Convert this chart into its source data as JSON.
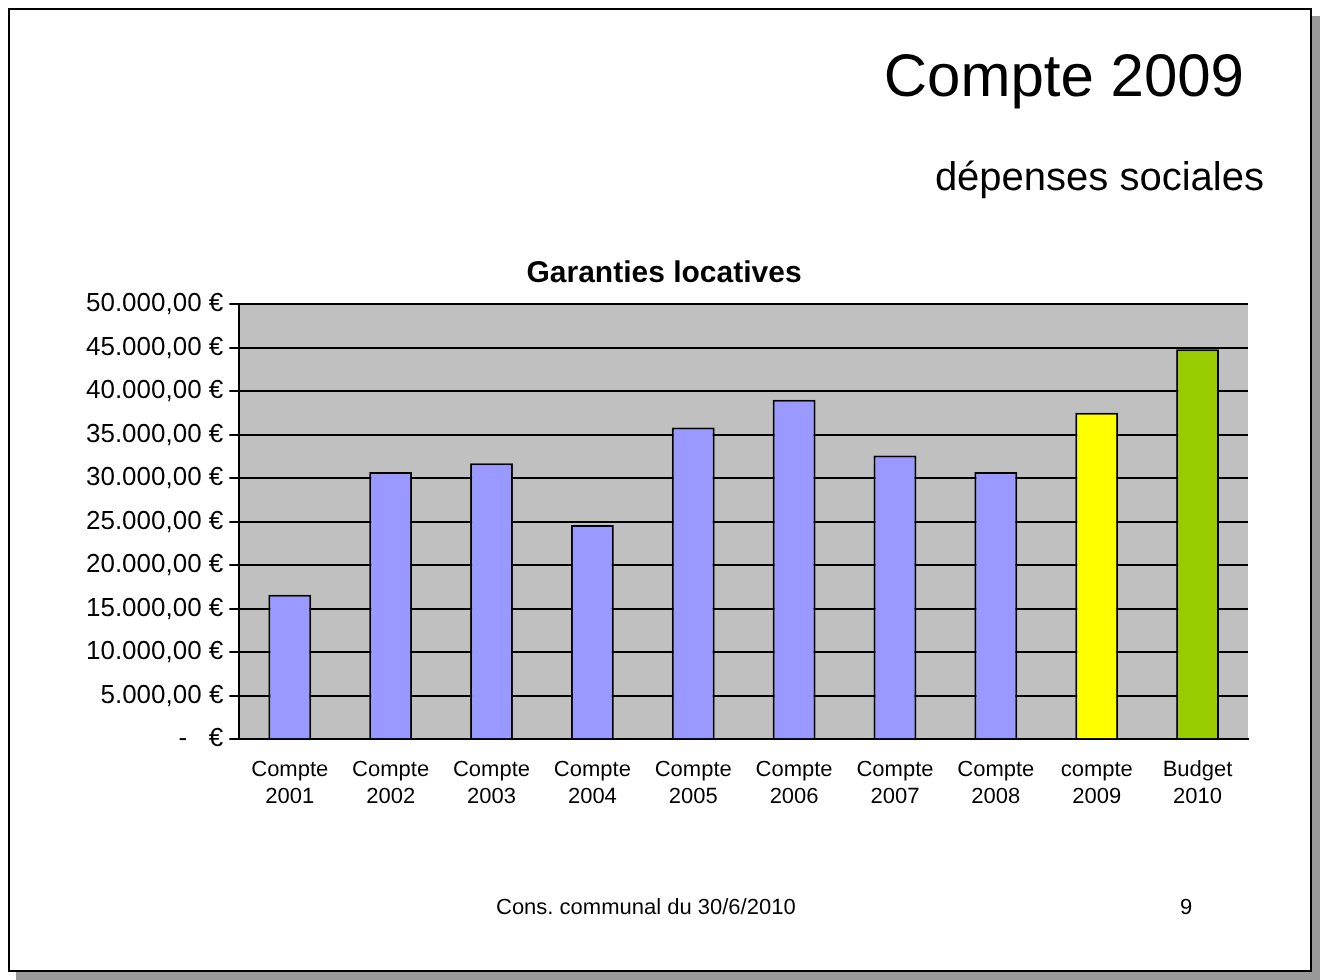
{
  "chart_data": {
    "type": "bar",
    "title": "Garanties locatives",
    "categories": [
      "Compte 2001",
      "Compte 2002",
      "Compte 2003",
      "Compte 2004",
      "Compte 2005",
      "Compte 2006",
      "Compte 2007",
      "Compte 2008",
      "compte 2009",
      "Budget 2010"
    ],
    "values": [
      16600,
      30700,
      31700,
      24600,
      35800,
      39000,
      32600,
      30700,
      37500,
      44800
    ],
    "colors": [
      "#9999ff",
      "#9999ff",
      "#9999ff",
      "#9999ff",
      "#9999ff",
      "#9999ff",
      "#9999ff",
      "#9999ff",
      "#ffff00",
      "#99cc00"
    ],
    "ylim": [
      0,
      50000
    ],
    "yticks": [
      {
        "value": 0,
        "label": "-   €"
      },
      {
        "value": 5000,
        "label": "5.000,00 €"
      },
      {
        "value": 10000,
        "label": "10.000,00 €"
      },
      {
        "value": 15000,
        "label": "15.000,00 €"
      },
      {
        "value": 20000,
        "label": "20.000,00 €"
      },
      {
        "value": 25000,
        "label": "25.000,00 €"
      },
      {
        "value": 30000,
        "label": "30.000,00 €"
      },
      {
        "value": 35000,
        "label": "35.000,00 €"
      },
      {
        "value": 40000,
        "label": "40.000,00 €"
      },
      {
        "value": 45000,
        "label": "45.000,00 €"
      },
      {
        "value": 50000,
        "label": "50.000,00 €"
      }
    ],
    "grid": "y",
    "legend": false,
    "annotations": [
      "Compte 2009",
      "dépenses sociales",
      "Cons. communal du 30/6/2010",
      "9"
    ]
  }
}
